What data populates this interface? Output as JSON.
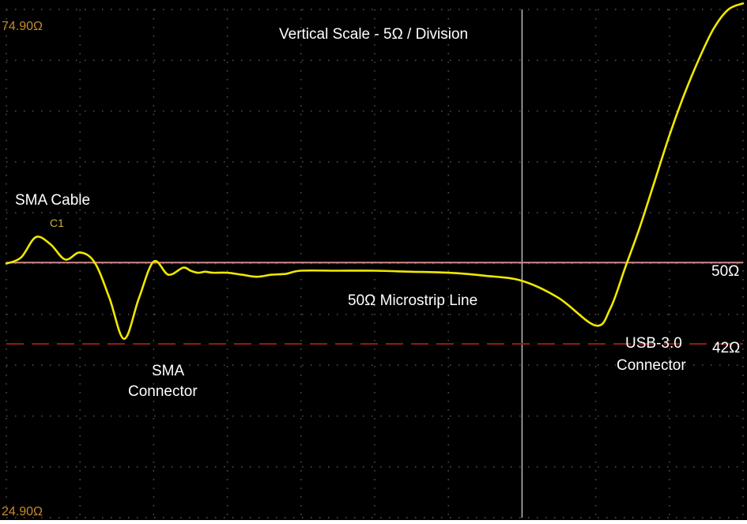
{
  "chart_data": {
    "type": "line",
    "title": "Vertical Scale - 5Ω / Division",
    "ylim": [
      24.9,
      74.9
    ],
    "y_top_label": "74.90Ω",
    "y_bottom_label": "24.90Ω",
    "grid": "on",
    "cursor_label": "C1",
    "reference_lines": [
      {
        "value": 50,
        "label": "50Ω",
        "style": "solid",
        "color": "#d48a8a"
      },
      {
        "value": 42,
        "label": "42Ω",
        "style": "dashed",
        "color": "#9a1a1a"
      }
    ],
    "annotations": {
      "sma_cable": "SMA Cable",
      "sma_connector_line1": "SMA",
      "sma_connector_line2": "Connector",
      "microstrip": "50Ω Microstrip Line",
      "usb_connector_line1": "USB-3.0",
      "usb_connector_line2": "Connector"
    },
    "series": [
      {
        "color": "#f0e800",
        "x": [
          0.0,
          0.02,
          0.04,
          0.06,
          0.08,
          0.1,
          0.12,
          0.14,
          0.16,
          0.18,
          0.2,
          0.22,
          0.24,
          0.25,
          0.26,
          0.27,
          0.28,
          0.3,
          0.32,
          0.34,
          0.36,
          0.38,
          0.4,
          0.45,
          0.5,
          0.55,
          0.6,
          0.65,
          0.7,
          0.75,
          0.8,
          0.82,
          0.84,
          0.86,
          0.88,
          0.9,
          0.92,
          0.94,
          0.96,
          0.98,
          1.0
        ],
        "y": [
          49.9,
          50.5,
          52.5,
          51.8,
          50.3,
          51.0,
          50.0,
          46.5,
          42.5,
          46.5,
          50.1,
          48.8,
          49.5,
          49.2,
          49.0,
          49.1,
          49.0,
          49.0,
          48.8,
          48.6,
          48.8,
          48.9,
          49.2,
          49.2,
          49.2,
          49.1,
          49.0,
          48.7,
          48.2,
          46.5,
          43.8,
          45.5,
          49.5,
          53.5,
          58.0,
          62.5,
          66.5,
          70.0,
          73.0,
          74.9,
          75.5
        ]
      }
    ]
  }
}
